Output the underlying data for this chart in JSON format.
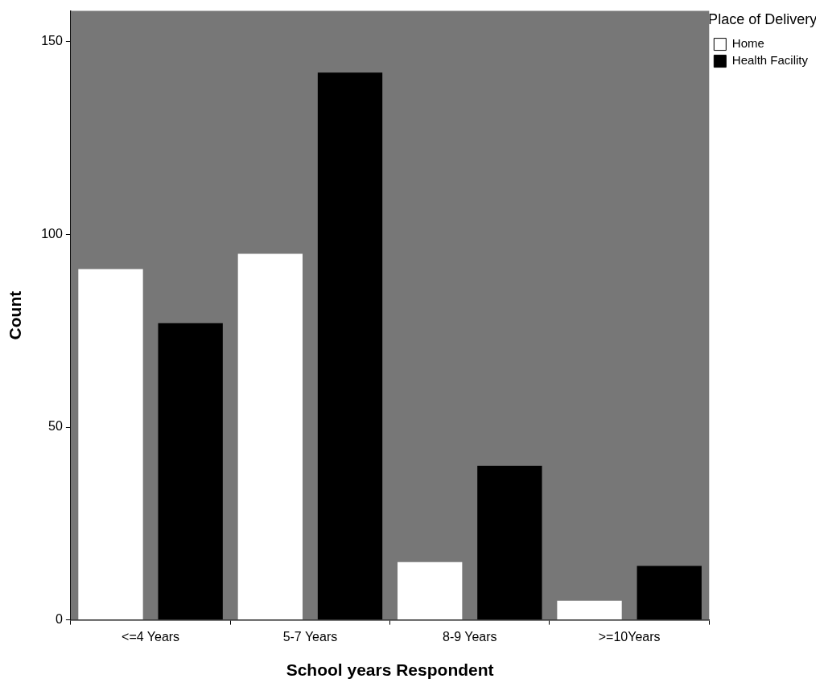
{
  "chart_data": {
    "type": "bar",
    "xlabel": "School years Respondent",
    "ylabel": "Count",
    "legend_title": "Place of Delivery",
    "categories": [
      "<=4 Years",
      "5-7 Years",
      "8-9 Years",
      ">=10Years"
    ],
    "series": [
      {
        "name": "Home",
        "color": "#ffffff",
        "values": [
          91,
          95,
          15,
          5
        ]
      },
      {
        "name": "Health Facility",
        "color": "#000000",
        "values": [
          77,
          142,
          40,
          14
        ]
      }
    ],
    "ylim": [
      0,
      158
    ],
    "yticks": [
      0,
      50,
      100,
      150
    ],
    "grid": false,
    "legend": "top right"
  }
}
